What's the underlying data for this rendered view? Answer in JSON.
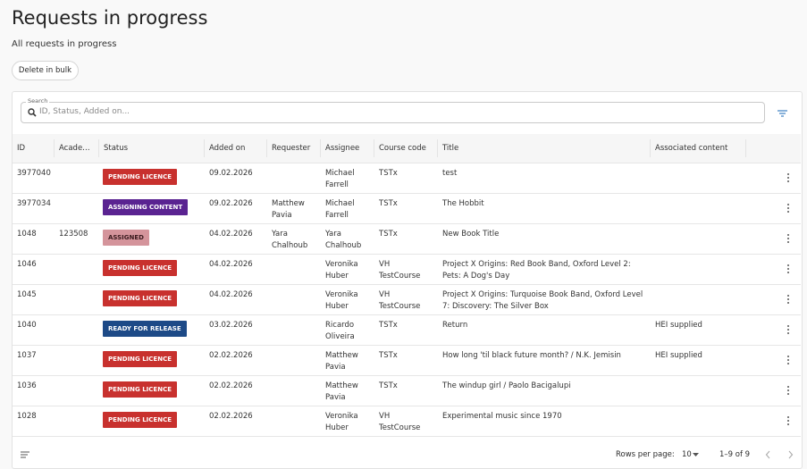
{
  "header": {
    "title": "Requests in progress",
    "subtitle": "All requests in progress",
    "button": "Delete in bulk"
  },
  "search": {
    "label": "Search",
    "placeholder": "ID, Status, Added on..."
  },
  "table": {
    "columns": [
      "ID",
      "Acade…",
      "Status",
      "Added on",
      "Requester",
      "Assignee",
      "Course code",
      "Title",
      "Associated content"
    ],
    "rows": [
      [
        "3977040",
        null,
        {
          "label": "PENDING LICENCE",
          "color": "#c8312e",
          "text_color": "#ffffff"
        },
        "09.02.2026",
        null,
        "Michael Farrell",
        "TSTx",
        "test",
        null
      ],
      [
        "3977034",
        null,
        {
          "label": "ASSIGNING CONTENT",
          "color": "#5a2391",
          "text_color": "#ffffff"
        },
        "09.02.2026",
        "Matthew Pavia",
        "Michael Farrell",
        "TSTx",
        "The Hobbit",
        null
      ],
      [
        "1048",
        "123508",
        {
          "label": "ASSIGNED",
          "color": "#d4949b",
          "text_color": "#3a1a1e"
        },
        "04.02.2026",
        "Yara Chalhoub",
        "Yara Chalhoub",
        "TSTx",
        "New Book Title",
        null
      ],
      [
        "1046",
        null,
        {
          "label": "PENDING LICENCE",
          "color": "#c8312e",
          "text_color": "#ffffff"
        },
        "04.02.2026",
        null,
        "Veronika Huber",
        "VH TestCourse",
        "Project X Origins: Red Book Band, Oxford Level 2: Pets: A Dog's Day",
        null
      ],
      [
        "1045",
        null,
        {
          "label": "PENDING LICENCE",
          "color": "#c8312e",
          "text_color": "#ffffff"
        },
        "04.02.2026",
        null,
        "Veronika Huber",
        "VH TestCourse",
        "Project X Origins: Turquoise Book Band, Oxford Level 7: Discovery: The Silver Box",
        null
      ],
      [
        "1040",
        null,
        {
          "label": "READY FOR RELEASE",
          "color": "#1d4a87",
          "text_color": "#ffffff"
        },
        "03.02.2026",
        null,
        "Ricardo Oliveira",
        "TSTx",
        "Return",
        "HEI supplied"
      ],
      [
        "1037",
        null,
        {
          "label": "PENDING LICENCE",
          "color": "#c8312e",
          "text_color": "#ffffff"
        },
        "02.02.2026",
        null,
        "Matthew Pavia",
        "TSTx",
        "How long 'til black future month? / N.K. Jemisin",
        "HEI supplied"
      ],
      [
        "1036",
        null,
        {
          "label": "PENDING LICENCE",
          "color": "#c8312e",
          "text_color": "#ffffff"
        },
        "02.02.2026",
        null,
        "Matthew Pavia",
        "TSTx",
        "The windup girl / Paolo Bacigalupi",
        null
      ],
      [
        "1028",
        null,
        {
          "label": "PENDING LICENCE",
          "color": "#c8312e",
          "text_color": "#ffffff"
        },
        "02.02.2026",
        null,
        "Veronika Huber",
        "VH TestCourse",
        "Experimental music since 1970",
        null
      ]
    ]
  },
  "footer": {
    "rows_per_page_label": "Rows per page:",
    "rows_per_page": "10",
    "range": "1–9 of 9"
  }
}
